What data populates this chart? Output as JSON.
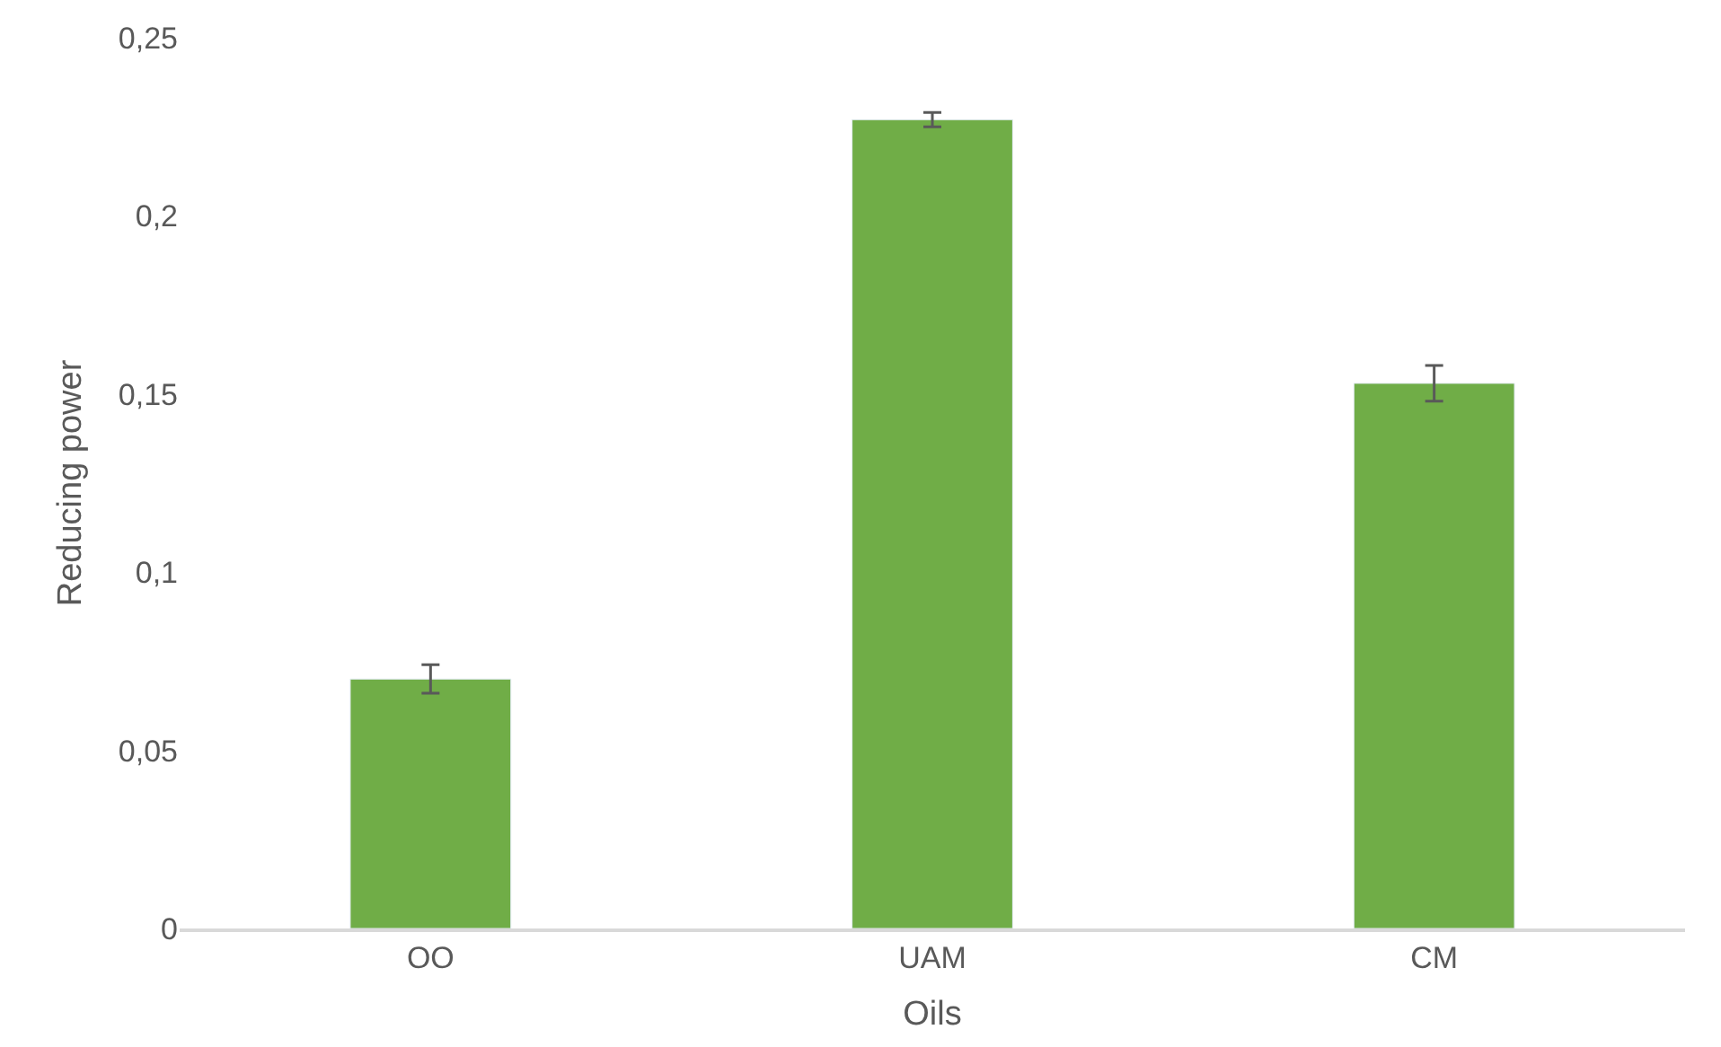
{
  "chart_data": {
    "type": "bar",
    "xlabel": "Oils",
    "ylabel": "Reducing power",
    "categories": [
      "OO",
      "UAM",
      "CM"
    ],
    "values": [
      0.07,
      0.227,
      0.153
    ],
    "errors": [
      0.004,
      0.002,
      0.005
    ],
    "color": "#70ad47",
    "ylim": [
      0,
      0.25
    ],
    "yticks": [
      {
        "value": 0,
        "label": "0"
      },
      {
        "value": 0.05,
        "label": "0,05"
      },
      {
        "value": 0.1,
        "label": "0,1"
      },
      {
        "value": 0.15,
        "label": "0,15"
      },
      {
        "value": 0.2,
        "label": "0,2"
      },
      {
        "value": 0.25,
        "label": "0,25"
      }
    ],
    "grid": false,
    "legend": false
  }
}
